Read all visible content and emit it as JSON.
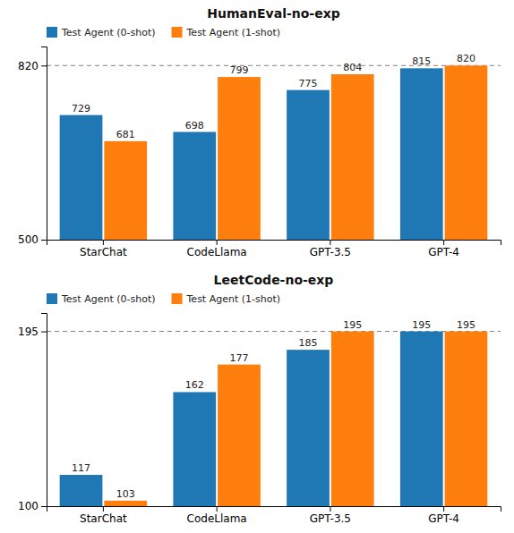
{
  "chart_data": [
    {
      "type": "bar",
      "title": "HumanEval-no-exp",
      "categories": [
        "StarChat",
        "CodeLlama",
        "GPT-3.5",
        "GPT-4"
      ],
      "series": [
        {
          "name": "Test Agent (0-shot)",
          "color": "#1f77b4",
          "values": [
            729,
            698,
            775,
            815
          ]
        },
        {
          "name": "Test Agent (1-shot)",
          "color": "#ff7f0e",
          "values": [
            681,
            799,
            804,
            820
          ]
        }
      ],
      "ylim": [
        500,
        855
      ],
      "yticks": [
        500,
        820
      ],
      "reference_line": 820,
      "data_labels": true,
      "legend": "upper left",
      "grid": false
    },
    {
      "type": "bar",
      "title": "LeetCode-no-exp",
      "categories": [
        "StarChat",
        "CodeLlama",
        "GPT-3.5",
        "GPT-4"
      ],
      "series": [
        {
          "name": "Test Agent (0-shot)",
          "color": "#1f77b4",
          "values": [
            117,
            162,
            185,
            195
          ]
        },
        {
          "name": "Test Agent (1-shot)",
          "color": "#ff7f0e",
          "values": [
            103,
            177,
            195,
            195
          ]
        }
      ],
      "ylim": [
        100,
        205
      ],
      "yticks": [
        100,
        195
      ],
      "reference_line": 195,
      "data_labels": true,
      "legend": "upper left",
      "grid": false
    }
  ]
}
